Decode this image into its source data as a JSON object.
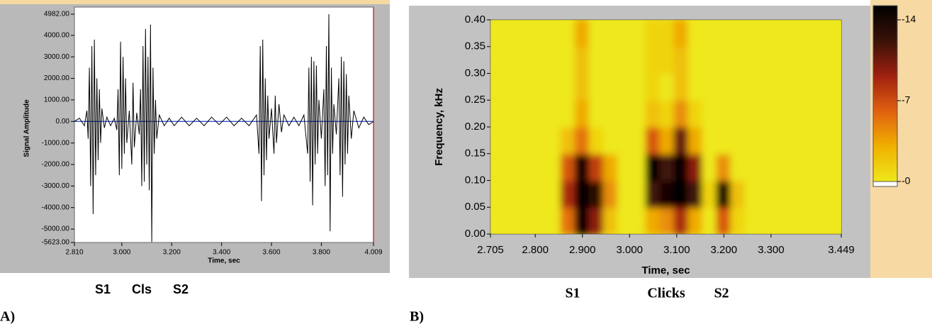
{
  "chart_data": [
    {
      "type": "line",
      "panel_label": "A)",
      "x_label": "Time, sec",
      "y_label": "Signal Amplitude",
      "color": "#000000",
      "xlim": [
        2.81,
        4.009
      ],
      "xticks": [
        {
          "value": 2.81,
          "label": "2.810"
        },
        {
          "value": 3,
          "label": "3.000"
        },
        {
          "value": 3.2,
          "label": "3.200"
        },
        {
          "value": 3.4,
          "label": "3.400"
        },
        {
          "value": 3.6,
          "label": "3.600"
        },
        {
          "value": 3.8,
          "label": "3.800"
        },
        4.009
      ],
      "ylim": [
        -5623,
        4982
      ],
      "yticks": [
        {
          "value": 4982,
          "label": "4982.00"
        },
        {
          "value": 4000,
          "label": "4000.00"
        },
        {
          "value": 3000,
          "label": "3000.00"
        },
        {
          "value": 2000,
          "label": "2000.00"
        },
        {
          "value": 1000,
          "label": "1000.00"
        },
        {
          "value": 0,
          "label": "0.00"
        },
        {
          "value": -1000,
          "label": "-1000.00"
        },
        {
          "value": -2000,
          "label": "-2000.00"
        },
        {
          "value": -3000,
          "label": "-3000.00"
        },
        {
          "value": -4000,
          "label": "-4000.00"
        },
        {
          "value": -5000,
          "label": "-5000.00"
        },
        {
          "value": -5623,
          "label": "-5623.00"
        }
      ],
      "x": [
        2.81,
        2.83,
        2.85,
        2.86,
        2.865,
        2.87,
        2.875,
        2.88,
        2.885,
        2.89,
        2.895,
        2.9,
        2.905,
        2.91,
        2.915,
        2.92,
        2.93,
        2.94,
        2.955,
        2.97,
        2.98,
        2.985,
        2.99,
        2.995,
        3.0,
        3.005,
        3.01,
        3.015,
        3.02,
        3.03,
        3.04,
        3.045,
        3.05,
        3.06,
        3.07,
        3.075,
        3.08,
        3.085,
        3.09,
        3.095,
        3.1,
        3.105,
        3.11,
        3.115,
        3.12,
        3.125,
        3.13,
        3.135,
        3.14,
        3.15,
        3.17,
        3.19,
        3.21,
        3.24,
        3.27,
        3.3,
        3.33,
        3.36,
        3.39,
        3.42,
        3.45,
        3.48,
        3.51,
        3.54,
        3.55,
        3.555,
        3.56,
        3.565,
        3.57,
        3.575,
        3.58,
        3.585,
        3.59,
        3.6,
        3.61,
        3.615,
        3.62,
        3.63,
        3.64,
        3.65,
        3.67,
        3.69,
        3.71,
        3.73,
        3.745,
        3.75,
        3.755,
        3.76,
        3.765,
        3.77,
        3.775,
        3.78,
        3.785,
        3.79,
        3.8,
        3.81,
        3.815,
        3.82,
        3.825,
        3.83,
        3.835,
        3.84,
        3.845,
        3.85,
        3.86,
        3.87,
        3.875,
        3.88,
        3.885,
        3.89,
        3.895,
        3.9,
        3.905,
        3.91,
        3.92,
        3.93,
        3.95,
        3.97,
        3.99,
        4.009
      ],
      "values": [
        0,
        150,
        -200,
        500,
        -800,
        2500,
        -3000,
        3500,
        -4300,
        3800,
        -2500,
        2000,
        -1800,
        1500,
        -1000,
        600,
        -300,
        200,
        -200,
        150,
        -400,
        1500,
        -2500,
        3700,
        -2200,
        3000,
        -1500,
        2000,
        -1000,
        500,
        -2000,
        1800,
        -1200,
        400,
        -600,
        1500,
        -3000,
        3500,
        -2800,
        4300,
        -2000,
        3000,
        -3200,
        4500,
        -5600,
        2500,
        -1500,
        1000,
        -800,
        300,
        -200,
        150,
        -200,
        200,
        -200,
        150,
        -200,
        200,
        -150,
        200,
        -200,
        150,
        -200,
        300,
        -1500,
        3500,
        -3700,
        3800,
        -2500,
        2000,
        -1800,
        1200,
        -800,
        600,
        -1500,
        1200,
        -1000,
        800,
        -500,
        300,
        -200,
        200,
        -200,
        300,
        -1500,
        2500,
        -2800,
        3000,
        -3900,
        2800,
        -2000,
        2600,
        -1500,
        1000,
        -800,
        1500,
        -3000,
        3500,
        -2500,
        4982,
        -5100,
        2500,
        -1500,
        800,
        -600,
        2000,
        -2500,
        3000,
        -3500,
        2800,
        -2000,
        2200,
        -1500,
        1200,
        -800,
        500,
        -300,
        200,
        -150,
        0
      ],
      "annotations": [
        "S1",
        "Cls",
        "S2"
      ]
    },
    {
      "type": "heatmap",
      "panel_label": "B)",
      "x_label": "Time, sec",
      "y_label": "Frequency, kHz",
      "xlim": [
        2.705,
        3.449
      ],
      "xticks": [
        2.705,
        {
          "value": 2.8,
          "label": "2.800"
        },
        {
          "value": 2.9,
          "label": "2.900"
        },
        {
          "value": 3,
          "label": "3.000"
        },
        {
          "value": 3.1,
          "label": "3.100"
        },
        {
          "value": 3.2,
          "label": "3.200"
        },
        {
          "value": 3.3,
          "label": "3.300"
        },
        3.449
      ],
      "ylim": [
        0,
        0.4
      ],
      "yticks": [
        {
          "value": 0,
          "label": "0.00"
        },
        {
          "value": 0.05,
          "label": "0.05"
        },
        {
          "value": 0.1,
          "label": "0.10"
        },
        {
          "value": 0.15,
          "label": "0.15"
        },
        {
          "value": 0.2,
          "label": "0.20"
        },
        {
          "value": 0.25,
          "label": "0.25"
        },
        {
          "value": 0.3,
          "label": "0.30"
        },
        {
          "value": 0.35,
          "label": "0.35"
        },
        {
          "value": 0.4,
          "label": "0.40"
        }
      ],
      "x": [
        2.72,
        2.75,
        2.78,
        2.81,
        2.84,
        2.87,
        2.9,
        2.93,
        2.96,
        2.99,
        3.02,
        3.05,
        3.08,
        3.11,
        3.14,
        3.17,
        3.2,
        3.23,
        3.26,
        3.29,
        3.32,
        3.35,
        3.38,
        3.41,
        3.44
      ],
      "y": [
        0.025,
        0.075,
        0.125,
        0.175,
        0.225,
        0.275,
        0.325,
        0.375
      ],
      "z": [
        [
          0,
          0,
          0,
          0,
          0,
          -5,
          -14,
          -9,
          -2,
          0,
          0,
          -3,
          -4,
          -8,
          -3,
          0,
          -6,
          -1,
          0,
          0,
          0,
          0,
          0,
          0,
          0
        ],
        [
          0,
          0,
          0,
          0,
          0,
          -8,
          -14,
          -12,
          -4,
          0,
          0,
          -11,
          -13,
          -14,
          -11,
          -1,
          -13,
          -2,
          0,
          0,
          0,
          0,
          0,
          0,
          0
        ],
        [
          0,
          0,
          0,
          0,
          0,
          -6,
          -14,
          -7,
          -3,
          0,
          0,
          -14,
          -11,
          -14,
          -9,
          0,
          -4,
          0,
          0,
          0,
          0,
          0,
          0,
          0,
          0
        ],
        [
          0,
          0,
          0,
          0,
          0,
          -2,
          -5,
          -1,
          0,
          0,
          0,
          -6,
          -3,
          -10,
          -3,
          0,
          0,
          0,
          0,
          0,
          0,
          0,
          0,
          0,
          0
        ],
        [
          0,
          0,
          0,
          0,
          0,
          0,
          -3,
          0,
          0,
          0,
          0,
          -2,
          -1,
          -4,
          -1,
          0,
          0,
          0,
          0,
          0,
          0,
          0,
          0,
          0,
          0
        ],
        [
          0,
          0,
          0,
          0,
          0,
          0,
          -2,
          0,
          0,
          0,
          0,
          -1,
          0,
          -2,
          0,
          0,
          0,
          0,
          0,
          0,
          0,
          0,
          0,
          0,
          0
        ],
        [
          0,
          0,
          0,
          0,
          0,
          0,
          -2,
          0,
          0,
          0,
          0,
          -1,
          -1,
          -2,
          0,
          0,
          0,
          0,
          0,
          0,
          0,
          0,
          0,
          0,
          0
        ],
        [
          0,
          0,
          0,
          0,
          0,
          0,
          -3,
          0,
          0,
          0,
          0,
          -1,
          -1,
          -3,
          0,
          0,
          0,
          0,
          0,
          0,
          0,
          0,
          0,
          0,
          0
        ]
      ],
      "zlim": [
        0,
        -14
      ],
      "zticks": [
        -14,
        -7,
        {
          "value": 0,
          "label": "-0"
        }
      ],
      "colors": [
        "#eee81a",
        "#f0b000",
        "#e06010",
        "#a02010",
        "#3a1208",
        "#000000"
      ],
      "annotations": [
        "S1",
        "Clicks",
        "S2"
      ]
    }
  ]
}
